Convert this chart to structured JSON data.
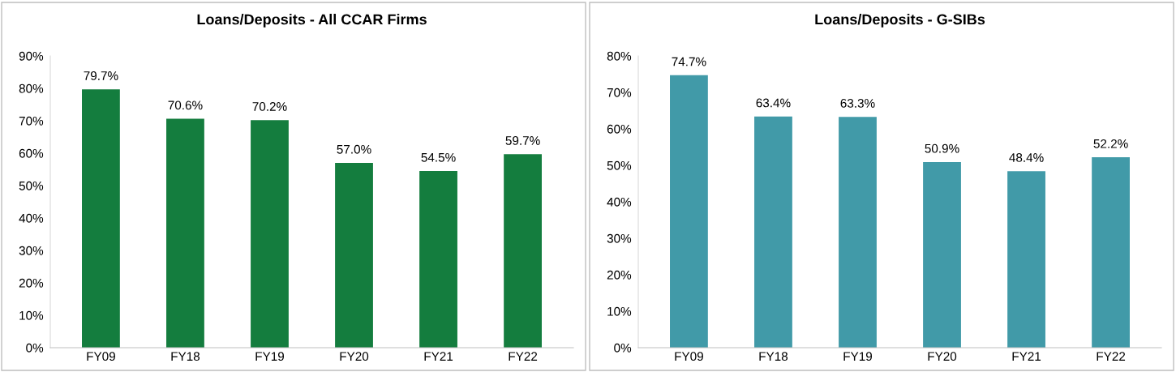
{
  "chart_data": [
    {
      "type": "bar",
      "title": "Loans/Deposits - All CCAR Firms",
      "categories": [
        "FY09",
        "FY18",
        "FY19",
        "FY20",
        "FY21",
        "FY22"
      ],
      "values": [
        79.7,
        70.6,
        70.2,
        57.0,
        54.5,
        59.7
      ],
      "value_labels": [
        "79.7%",
        "70.6%",
        "70.2%",
        "57.0%",
        "54.5%",
        "59.7%"
      ],
      "color": "#147d3e",
      "ylim": [
        0,
        90
      ],
      "yticks": [
        {
          "value": 0,
          "label": "0%"
        },
        {
          "value": 10,
          "label": "10%"
        },
        {
          "value": 20,
          "label": "20%"
        },
        {
          "value": 30,
          "label": "30%"
        },
        {
          "value": 40,
          "label": "40%"
        },
        {
          "value": 50,
          "label": "50%"
        },
        {
          "value": 60,
          "label": "60%"
        },
        {
          "value": 70,
          "label": "70%"
        },
        {
          "value": 80,
          "label": "80%"
        },
        {
          "value": 90,
          "label": "90%"
        }
      ],
      "grid": false,
      "legend": false
    },
    {
      "type": "bar",
      "title": "Loans/Deposits - G-SIBs",
      "categories": [
        "FY09",
        "FY18",
        "FY19",
        "FY20",
        "FY21",
        "FY22"
      ],
      "values": [
        74.7,
        63.4,
        63.3,
        50.9,
        48.4,
        52.2
      ],
      "value_labels": [
        "74.7%",
        "63.4%",
        "63.3%",
        "50.9%",
        "48.4%",
        "52.2%"
      ],
      "color": "#419aa8",
      "ylim": [
        0,
        80
      ],
      "yticks": [
        {
          "value": 0,
          "label": "0%"
        },
        {
          "value": 10,
          "label": "10%"
        },
        {
          "value": 20,
          "label": "20%"
        },
        {
          "value": 30,
          "label": "30%"
        },
        {
          "value": 40,
          "label": "40%"
        },
        {
          "value": 50,
          "label": "50%"
        },
        {
          "value": 60,
          "label": "60%"
        },
        {
          "value": 70,
          "label": "70%"
        },
        {
          "value": 80,
          "label": "80%"
        }
      ],
      "grid": false,
      "legend": false
    }
  ]
}
